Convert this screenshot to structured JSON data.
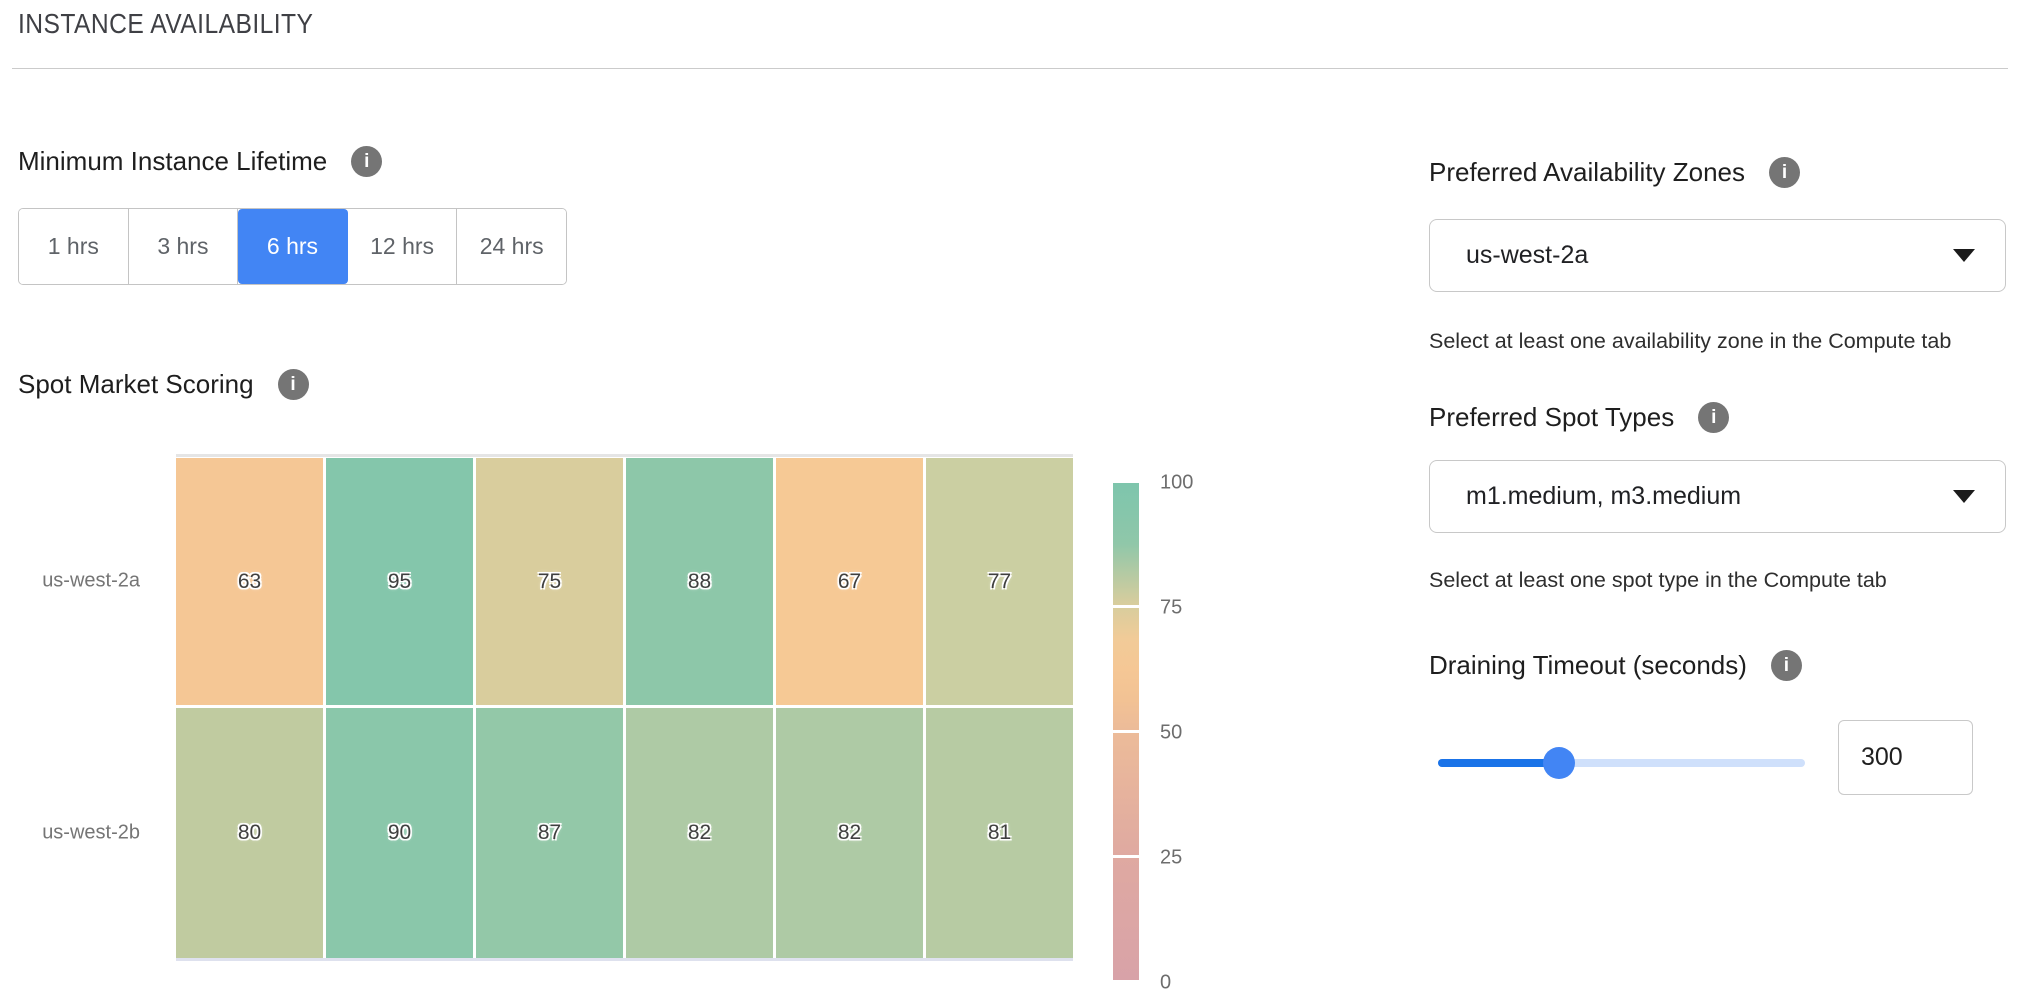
{
  "header": {
    "title": "INSTANCE AVAILABILITY"
  },
  "lifetime": {
    "label": "Minimum Instance Lifetime",
    "options": [
      "1 hrs",
      "3 hrs",
      "6 hrs",
      "12 hrs",
      "24 hrs"
    ],
    "selected": "6 hrs"
  },
  "chart_data": {
    "type": "heatmap",
    "title": "Spot Market Scoring",
    "rows": [
      "us-west-2a",
      "us-west-2b"
    ],
    "values": [
      [
        63,
        95,
        75,
        88,
        67,
        77
      ],
      [
        80,
        90,
        87,
        82,
        82,
        81
      ]
    ],
    "scale_range": [
      0,
      100
    ],
    "scale_ticks": [
      100,
      75,
      50,
      25,
      0
    ],
    "legend_position": "right",
    "colormap": [
      [
        0,
        "#d8a2a8"
      ],
      [
        25,
        "#dfa9a1"
      ],
      [
        50,
        "#ecbb99"
      ],
      [
        58,
        "#f4c492"
      ],
      [
        63,
        "#f5c795"
      ],
      [
        67,
        "#f6c995"
      ],
      [
        71,
        "#ebcd9b"
      ],
      [
        75,
        "#d9cd9d"
      ],
      [
        77,
        "#cbcfa2"
      ],
      [
        80,
        "#c0cba0"
      ],
      [
        82,
        "#aecaa5"
      ],
      [
        85,
        "#9fc9a7"
      ],
      [
        88,
        "#8dc7a9"
      ],
      [
        95,
        "#84c6ab"
      ],
      [
        100,
        "#7ec5ac"
      ]
    ]
  },
  "zones": {
    "label": "Preferred Availability Zones",
    "value": "us-west-2a",
    "helper": "Select at least one availability zone in the Compute tab"
  },
  "spot_types": {
    "label": "Preferred Spot Types",
    "value": "m1.medium, m3.medium",
    "helper": "Select at least one spot type in the Compute tab"
  },
  "draining": {
    "label": "Draining Timeout (seconds)",
    "value": "300",
    "slider_percent": 33
  },
  "icons": {
    "info": "i"
  },
  "colors": {
    "accent": "#4285f4",
    "slider_fill": "#1a73e8",
    "slider_track": "#cfe0fb",
    "slider_thumb": "#4285f4"
  }
}
